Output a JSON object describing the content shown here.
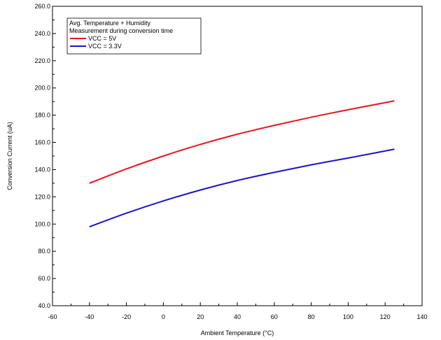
{
  "chart_data": {
    "type": "line",
    "title": "",
    "xlabel": "Ambient Temperature (°C)",
    "ylabel": "Conversion Current (uA)",
    "xlim": [
      -60,
      140
    ],
    "ylim": [
      40,
      260
    ],
    "xticks": [
      -60,
      -40,
      -20,
      0,
      20,
      40,
      60,
      80,
      100,
      120,
      140
    ],
    "yticks": [
      40,
      60,
      80,
      100,
      120,
      140,
      160,
      180,
      200,
      220,
      240,
      260
    ],
    "ytick_labels": [
      "40.0",
      "60.0",
      "80.0",
      "100.0",
      "120.0",
      "140.0",
      "160.0",
      "180.0",
      "200.0",
      "220.0",
      "240.0",
      "260.0"
    ],
    "xtick_labels": [
      "-60",
      "-40",
      "-20",
      "0",
      "20",
      "40",
      "60",
      "80",
      "100",
      "120",
      "140"
    ],
    "grid": true,
    "legend": {
      "position": "top-left",
      "header_lines": [
        "Avg. Temperature + Humidity",
        "Measurement during conversion time"
      ]
    },
    "series": [
      {
        "name": "VCC = 5V",
        "color": "#e8141c",
        "x": [
          -40,
          -20,
          0,
          20,
          40,
          60,
          80,
          100,
          125
        ],
        "values": [
          130,
          140.5,
          150,
          158.5,
          166,
          172.5,
          178.5,
          184,
          190.5
        ]
      },
      {
        "name": "VCC = 3.3V",
        "color": "#1c14c8",
        "x": [
          -40,
          -20,
          0,
          20,
          40,
          60,
          80,
          100,
          125
        ],
        "values": [
          98,
          108,
          117,
          125,
          132,
          138,
          143.5,
          148.5,
          155
        ]
      }
    ]
  }
}
